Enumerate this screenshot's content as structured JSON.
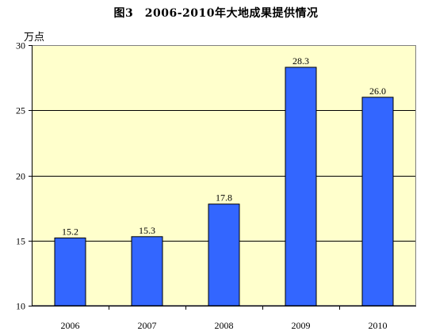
{
  "chart_data": {
    "type": "bar",
    "title": "图3　2006-2010年大地成果提供情况",
    "ylabel": "万点",
    "xlabel": "",
    "categories": [
      "2006",
      "2007",
      "2008",
      "2009",
      "2010"
    ],
    "values": [
      15.2,
      15.3,
      17.8,
      28.3,
      26.0
    ],
    "value_labels": [
      "15.2",
      "15.3",
      "17.8",
      "28.3",
      "26.0"
    ],
    "ylim": [
      10,
      30
    ],
    "yticks": [
      10,
      15,
      20,
      25,
      30
    ],
    "grid": true,
    "legend": "none",
    "colors": {
      "bar": "#3366FF",
      "plot_background": "#FFFFCC",
      "axis": "#000000",
      "gridline": "#000000"
    }
  }
}
